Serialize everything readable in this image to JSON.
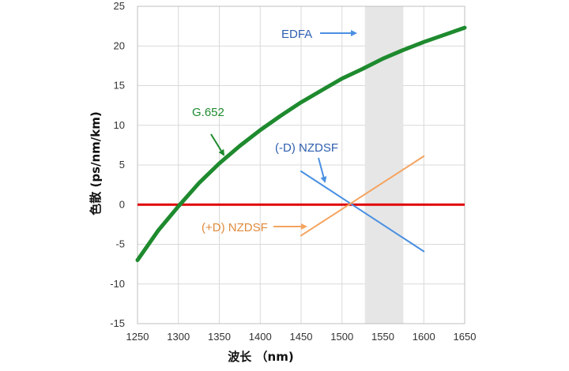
{
  "chart_data": {
    "type": "line",
    "title": "",
    "xlabel": "波长 （nm)",
    "ylabel": "色散 (ps/nm/km)",
    "xlim": [
      1250,
      1650
    ],
    "ylim": [
      -15,
      25
    ],
    "x_ticks": [
      "1250",
      "1300",
      "1350",
      "1400",
      "1450",
      "1500",
      "1550",
      "1600",
      "1650"
    ],
    "y_ticks": [
      "25",
      "20",
      "15",
      "10",
      "5",
      "0",
      "-5",
      "-10",
      "-15"
    ],
    "grid": true,
    "shaded_band": {
      "label": "EDFA",
      "x_range": [
        1528,
        1575
      ],
      "color": "#e6e6e6"
    },
    "zero_line": {
      "y": 0,
      "color": "#e00000"
    },
    "series": [
      {
        "name": "G.652",
        "color": "#1e8a2e",
        "x": [
          1250,
          1275,
          1300,
          1325,
          1350,
          1375,
          1400,
          1425,
          1450,
          1475,
          1500,
          1525,
          1550,
          1575,
          1600,
          1625,
          1650
        ],
        "y": [
          -7.0,
          -3.3,
          -0.2,
          2.7,
          5.2,
          7.4,
          9.4,
          11.2,
          12.9,
          14.4,
          15.9,
          17.1,
          18.4,
          19.5,
          20.5,
          21.4,
          22.3
        ]
      },
      {
        "name": "(-D) NZDSF",
        "color": "#4a90e2",
        "x": [
          1450,
          1600
        ],
        "y": [
          4.2,
          -5.9
        ]
      },
      {
        "name": "(+D) NZDSF",
        "color": "#f4a460",
        "x": [
          1450,
          1600
        ],
        "y": [
          -3.9,
          6.1
        ]
      }
    ],
    "annotations": [
      {
        "text": "EDFA",
        "color": "#2f5fb0"
      },
      {
        "text": "G.652",
        "color": "#1e8a2e"
      },
      {
        "text": "(-D) NZDSF",
        "color": "#2f5fb0"
      },
      {
        "text": "(+D) NZDSF",
        "color": "#e08a3c"
      }
    ]
  }
}
